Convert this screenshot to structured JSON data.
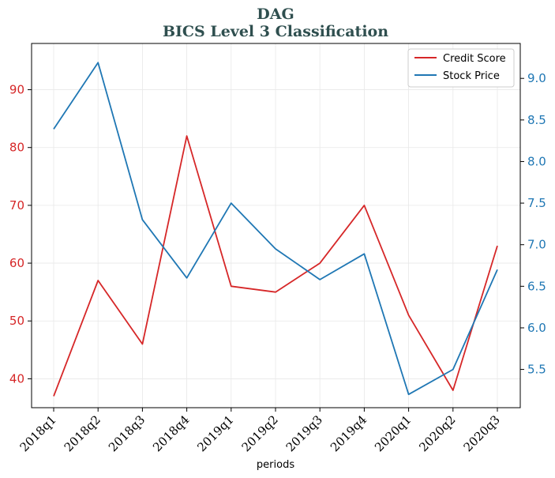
{
  "chart_data": {
    "type": "line",
    "title": "DAG",
    "subtitle": "BICS Level 3 Classification",
    "xlabel": "periods",
    "categories": [
      "2018q1",
      "2018q2",
      "2018q3",
      "2018q4",
      "2019q1",
      "2019q2",
      "2019q3",
      "2019q4",
      "2020q1",
      "2020q2",
      "2020q3"
    ],
    "series": [
      {
        "name": "Credit Score",
        "axis": "left",
        "color": "#d62728",
        "values": [
          37,
          57,
          46,
          82,
          56,
          55,
          60,
          70,
          51,
          38,
          63
        ]
      },
      {
        "name": "Stock Price",
        "axis": "right",
        "color": "#1f77b4",
        "values": [
          8.39,
          9.19,
          7.3,
          6.6,
          7.5,
          6.95,
          6.58,
          6.89,
          5.2,
          5.5,
          6.7
        ]
      }
    ],
    "y_left": {
      "ylim": [
        35,
        98
      ],
      "ticks": [
        40,
        50,
        60,
        70,
        80,
        90
      ],
      "color": "#d62728"
    },
    "y_right": {
      "ylim": [
        5.04,
        9.42
      ],
      "ticks": [
        "5.5",
        "6.0",
        "6.5",
        "7.0",
        "7.5",
        "8.0",
        "8.5",
        "9.0"
      ],
      "color": "#1f77b4"
    },
    "grid": true,
    "legend": "top-right"
  }
}
